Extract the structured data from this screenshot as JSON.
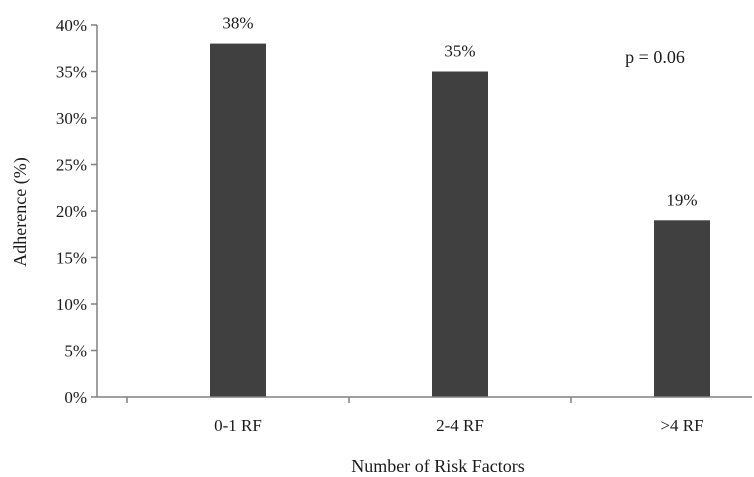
{
  "chart_data": {
    "type": "bar",
    "title": "",
    "xlabel": "Number of Risk Factors",
    "ylabel": "Adherence (%)",
    "categories": [
      "0-1 RF",
      "2-4 RF",
      ">4 RF"
    ],
    "values": [
      38,
      35,
      19
    ],
    "data_labels": [
      "38%",
      "35%",
      "19%"
    ],
    "ylim": [
      0,
      40
    ],
    "yticks": [
      0,
      5,
      10,
      15,
      20,
      25,
      30,
      35,
      40
    ],
    "ytick_labels": [
      "0%",
      "5%",
      "10%",
      "15%",
      "20%",
      "25%",
      "30%",
      "35%",
      "40%"
    ],
    "annotation": "p = 0.06",
    "bar_color": "#404040",
    "axis_color": "#808080",
    "grid": false,
    "legend": "none"
  }
}
